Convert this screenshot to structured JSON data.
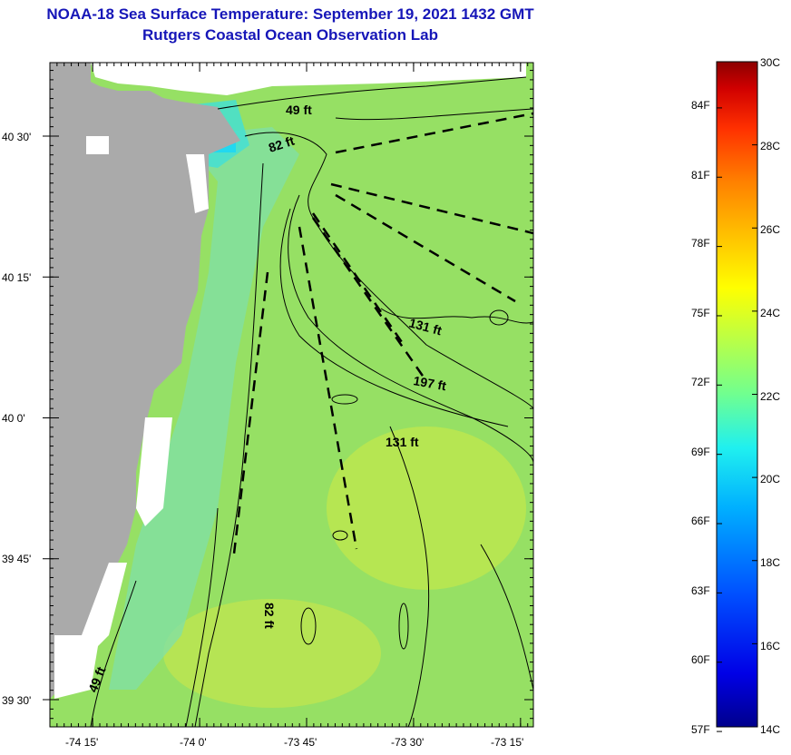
{
  "header": {
    "title": "NOAA-18 Sea Surface Temperature:  September 19, 2021 1432 GMT",
    "subtitle": "Rutgers Coastal Ocean Observation Lab"
  },
  "map": {
    "lat_range": [
      39.45,
      40.65
    ],
    "lon_range": [
      -74.35,
      -73.22
    ],
    "lat_ticks": [
      {
        "value": 40.5,
        "label": "40 30'"
      },
      {
        "value": 40.25,
        "label": "40 15'"
      },
      {
        "value": 40.0,
        "label": "40 0'"
      },
      {
        "value": 39.75,
        "label": "39 45'"
      },
      {
        "value": 39.5,
        "label": "39 30'"
      }
    ],
    "lon_ticks": [
      {
        "value": -74.25,
        "label": "-74 15'"
      },
      {
        "value": -74.0,
        "label": "-74 0'"
      },
      {
        "value": -73.75,
        "label": "-73 45'"
      },
      {
        "value": -73.5,
        "label": "-73 30'"
      },
      {
        "value": -73.25,
        "label": "-73 15'"
      }
    ],
    "depth_labels": [
      {
        "text": "49 ft"
      },
      {
        "text": "82 ft"
      },
      {
        "text": "131 ft"
      },
      {
        "text": "197 ft"
      },
      {
        "text": "131 ft"
      },
      {
        "text": "82 ft"
      },
      {
        "text": "49 ft"
      }
    ],
    "colors": {
      "land": "#aaaaaa",
      "ocean": "#96e064",
      "coast_water": "#7fe0a0",
      "warm_patch": "#c8e84a",
      "cold_patch": "#22d8f0",
      "contour": "#000000"
    }
  },
  "colorbar": {
    "c_labels": [
      "30C",
      "28C",
      "26C",
      "24C",
      "22C",
      "20C",
      "18C",
      "16C",
      "14C"
    ],
    "f_labels": [
      "84F",
      "81F",
      "78F",
      "75F",
      "72F",
      "69F",
      "66F",
      "63F",
      "60F",
      "57F"
    ],
    "c_range": [
      14,
      30
    ],
    "colors": [
      "#00008c",
      "#0000e6",
      "#0050ff",
      "#00a0ff",
      "#00e6ff",
      "#40ffbf",
      "#8cff73",
      "#c8ff37",
      "#ffff00",
      "#ffc000",
      "#ff8000",
      "#ff4000",
      "#e60000",
      "#8c0000"
    ]
  }
}
